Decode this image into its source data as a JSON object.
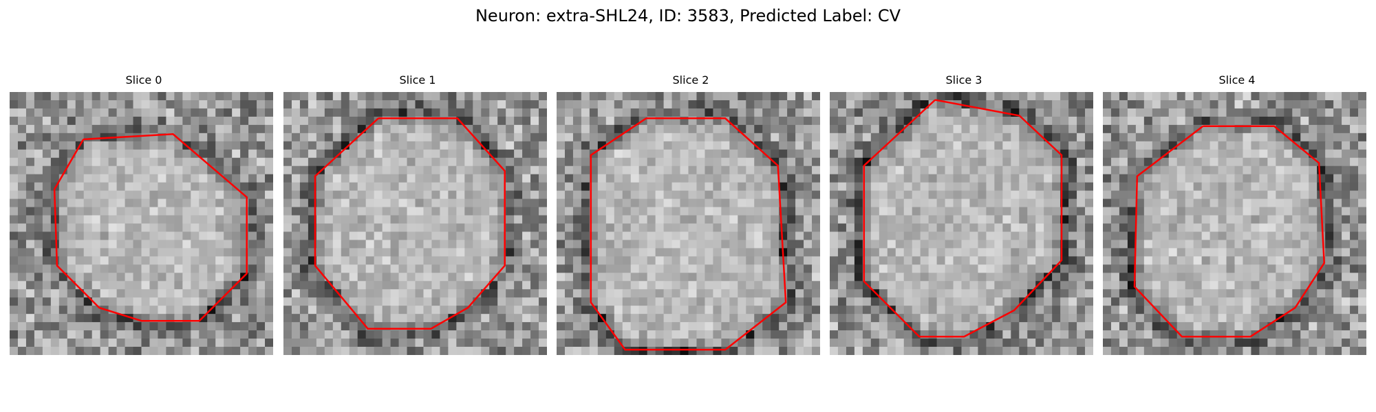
{
  "figure": {
    "title": "Neuron: extra-SHL24, ID: 3583, Predicted Label: CV"
  },
  "panels": [
    {
      "title": "Slice 0",
      "seed": 11,
      "outline": [
        [
          0.28,
          0.18
        ],
        [
          0.62,
          0.16
        ],
        [
          0.9,
          0.4
        ],
        [
          0.9,
          0.69
        ],
        [
          0.72,
          0.87
        ],
        [
          0.5,
          0.87
        ],
        [
          0.34,
          0.82
        ],
        [
          0.18,
          0.66
        ],
        [
          0.17,
          0.37
        ]
      ]
    },
    {
      "title": "Slice 1",
      "seed": 27,
      "outline": [
        [
          0.36,
          0.1
        ],
        [
          0.66,
          0.1
        ],
        [
          0.84,
          0.3
        ],
        [
          0.84,
          0.66
        ],
        [
          0.7,
          0.82
        ],
        [
          0.56,
          0.9
        ],
        [
          0.32,
          0.9
        ],
        [
          0.12,
          0.66
        ],
        [
          0.12,
          0.32
        ]
      ]
    },
    {
      "title": "Slice 2",
      "seed": 43,
      "outline": [
        [
          0.34,
          0.1
        ],
        [
          0.64,
          0.1
        ],
        [
          0.84,
          0.28
        ],
        [
          0.87,
          0.8
        ],
        [
          0.64,
          0.98
        ],
        [
          0.26,
          0.98
        ],
        [
          0.13,
          0.8
        ],
        [
          0.13,
          0.24
        ]
      ]
    },
    {
      "title": "Slice 3",
      "seed": 59,
      "outline": [
        [
          0.4,
          0.03
        ],
        [
          0.72,
          0.09
        ],
        [
          0.88,
          0.24
        ],
        [
          0.88,
          0.64
        ],
        [
          0.7,
          0.83
        ],
        [
          0.51,
          0.93
        ],
        [
          0.34,
          0.93
        ],
        [
          0.13,
          0.72
        ],
        [
          0.13,
          0.28
        ]
      ]
    },
    {
      "title": "Slice 4",
      "seed": 73,
      "outline": [
        [
          0.38,
          0.13
        ],
        [
          0.65,
          0.13
        ],
        [
          0.82,
          0.27
        ],
        [
          0.84,
          0.65
        ],
        [
          0.73,
          0.82
        ],
        [
          0.56,
          0.93
        ],
        [
          0.3,
          0.93
        ],
        [
          0.12,
          0.74
        ],
        [
          0.13,
          0.32
        ]
      ]
    }
  ],
  "style": {
    "contour_color": "#ff0000"
  }
}
